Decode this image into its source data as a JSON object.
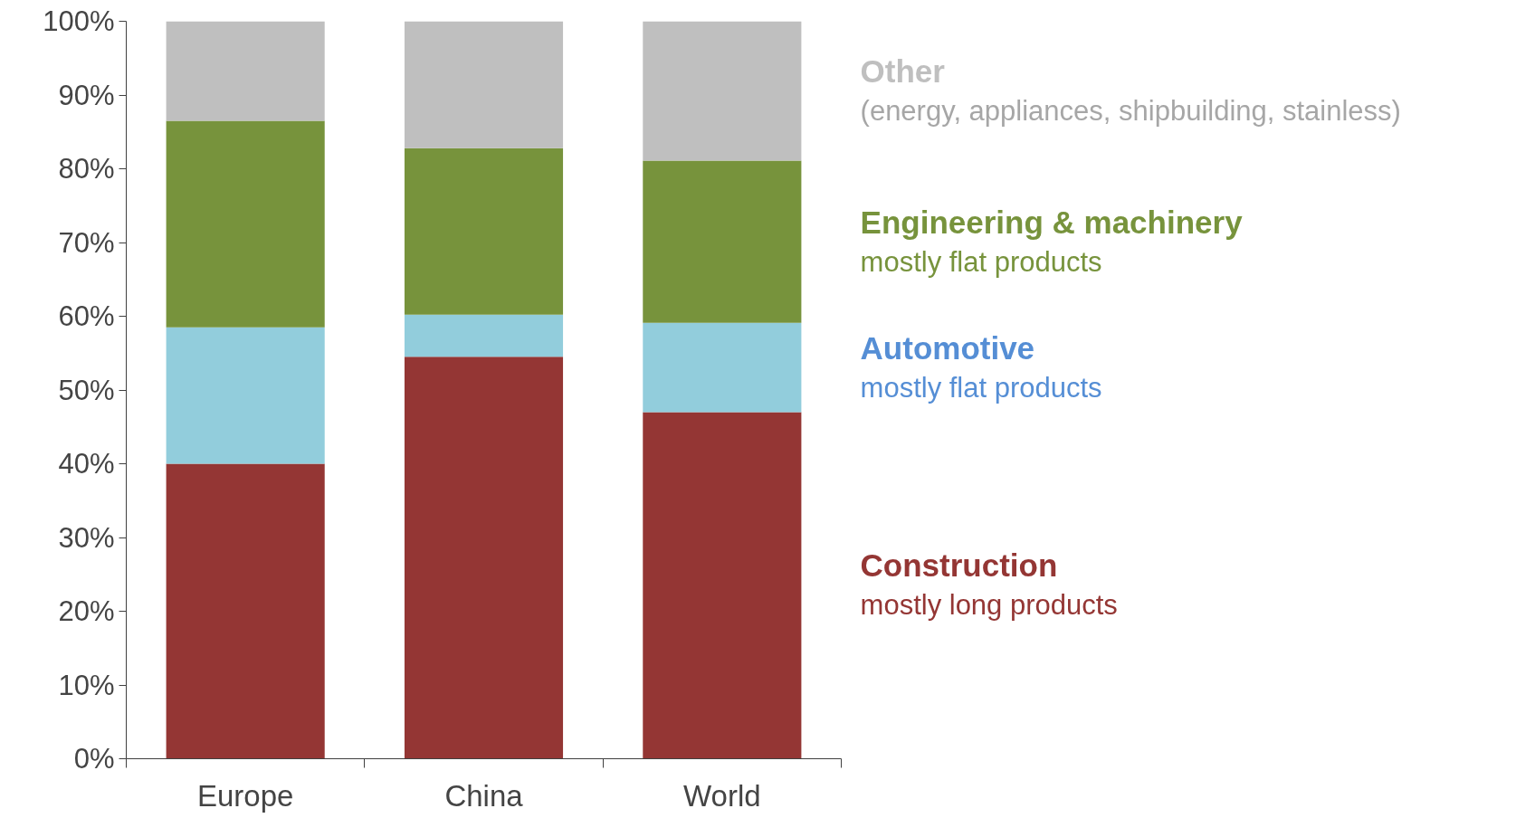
{
  "chart_data": {
    "type": "bar",
    "stacked": true,
    "categories": [
      "Europe",
      "China",
      "World"
    ],
    "series": [
      {
        "name": "Construction",
        "color": "#943634",
        "values": [
          40.0,
          54.5,
          47.0
        ]
      },
      {
        "name": "Automotive",
        "color": "#92cddc",
        "values": [
          18.5,
          5.7,
          12.1
        ]
      },
      {
        "name": "Engineering & machinery",
        "color": "#77933c",
        "values": [
          28.0,
          22.6,
          22.0
        ]
      },
      {
        "name": "Other",
        "color": "#bfbfbf",
        "values": [
          13.5,
          17.2,
          18.9
        ]
      }
    ],
    "annotations": [
      "mostly long products",
      "mostly flat products",
      "mostly flat products",
      "(energy, appliances, shipbuilding, stainless)"
    ],
    "ylim": [
      0,
      100
    ],
    "yticks": [
      {
        "value": 0,
        "label": "0%"
      },
      {
        "value": 10,
        "label": "10%"
      },
      {
        "value": 20,
        "label": "20%"
      },
      {
        "value": 30,
        "label": "30%"
      },
      {
        "value": 40,
        "label": "40%"
      },
      {
        "value": 50,
        "label": "50%"
      },
      {
        "value": 60,
        "label": "60%"
      },
      {
        "value": 70,
        "label": "70%"
      },
      {
        "value": 80,
        "label": "80%"
      },
      {
        "value": 90,
        "label": "90%"
      },
      {
        "value": 100,
        "label": "100%"
      }
    ],
    "grid": false
  }
}
